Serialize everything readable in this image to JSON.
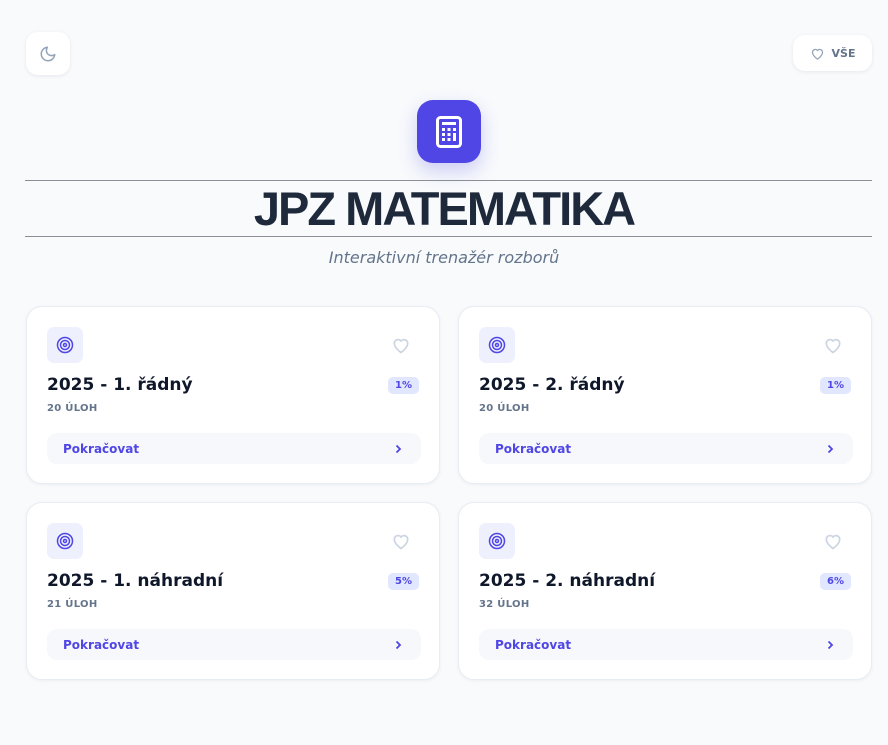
{
  "header": {
    "theme_toggle_icon": "moon-icon",
    "favorites_label": "VŠE",
    "logo_icon": "calculator-icon",
    "title": "JPZ MATEMATIKA",
    "subtitle": "Interaktivní trenažér rozborů"
  },
  "colors": {
    "accent": "#4f46e5",
    "background": "#f8fafc",
    "text": "#1e293b",
    "muted": "#64748b"
  },
  "cards": [
    {
      "title": "2025 - 1. řádný",
      "count": "20 ÚLOH",
      "progress": "1%",
      "action": "Pokračovat"
    },
    {
      "title": "2025 - 2. řádný",
      "count": "20 ÚLOH",
      "progress": "1%",
      "action": "Pokračovat"
    },
    {
      "title": "2025 - 1. náhradní",
      "count": "21 ÚLOH",
      "progress": "5%",
      "action": "Pokračovat"
    },
    {
      "title": "2025 - 2. náhradní",
      "count": "32 ÚLOH",
      "progress": "6%",
      "action": "Pokračovat"
    }
  ]
}
